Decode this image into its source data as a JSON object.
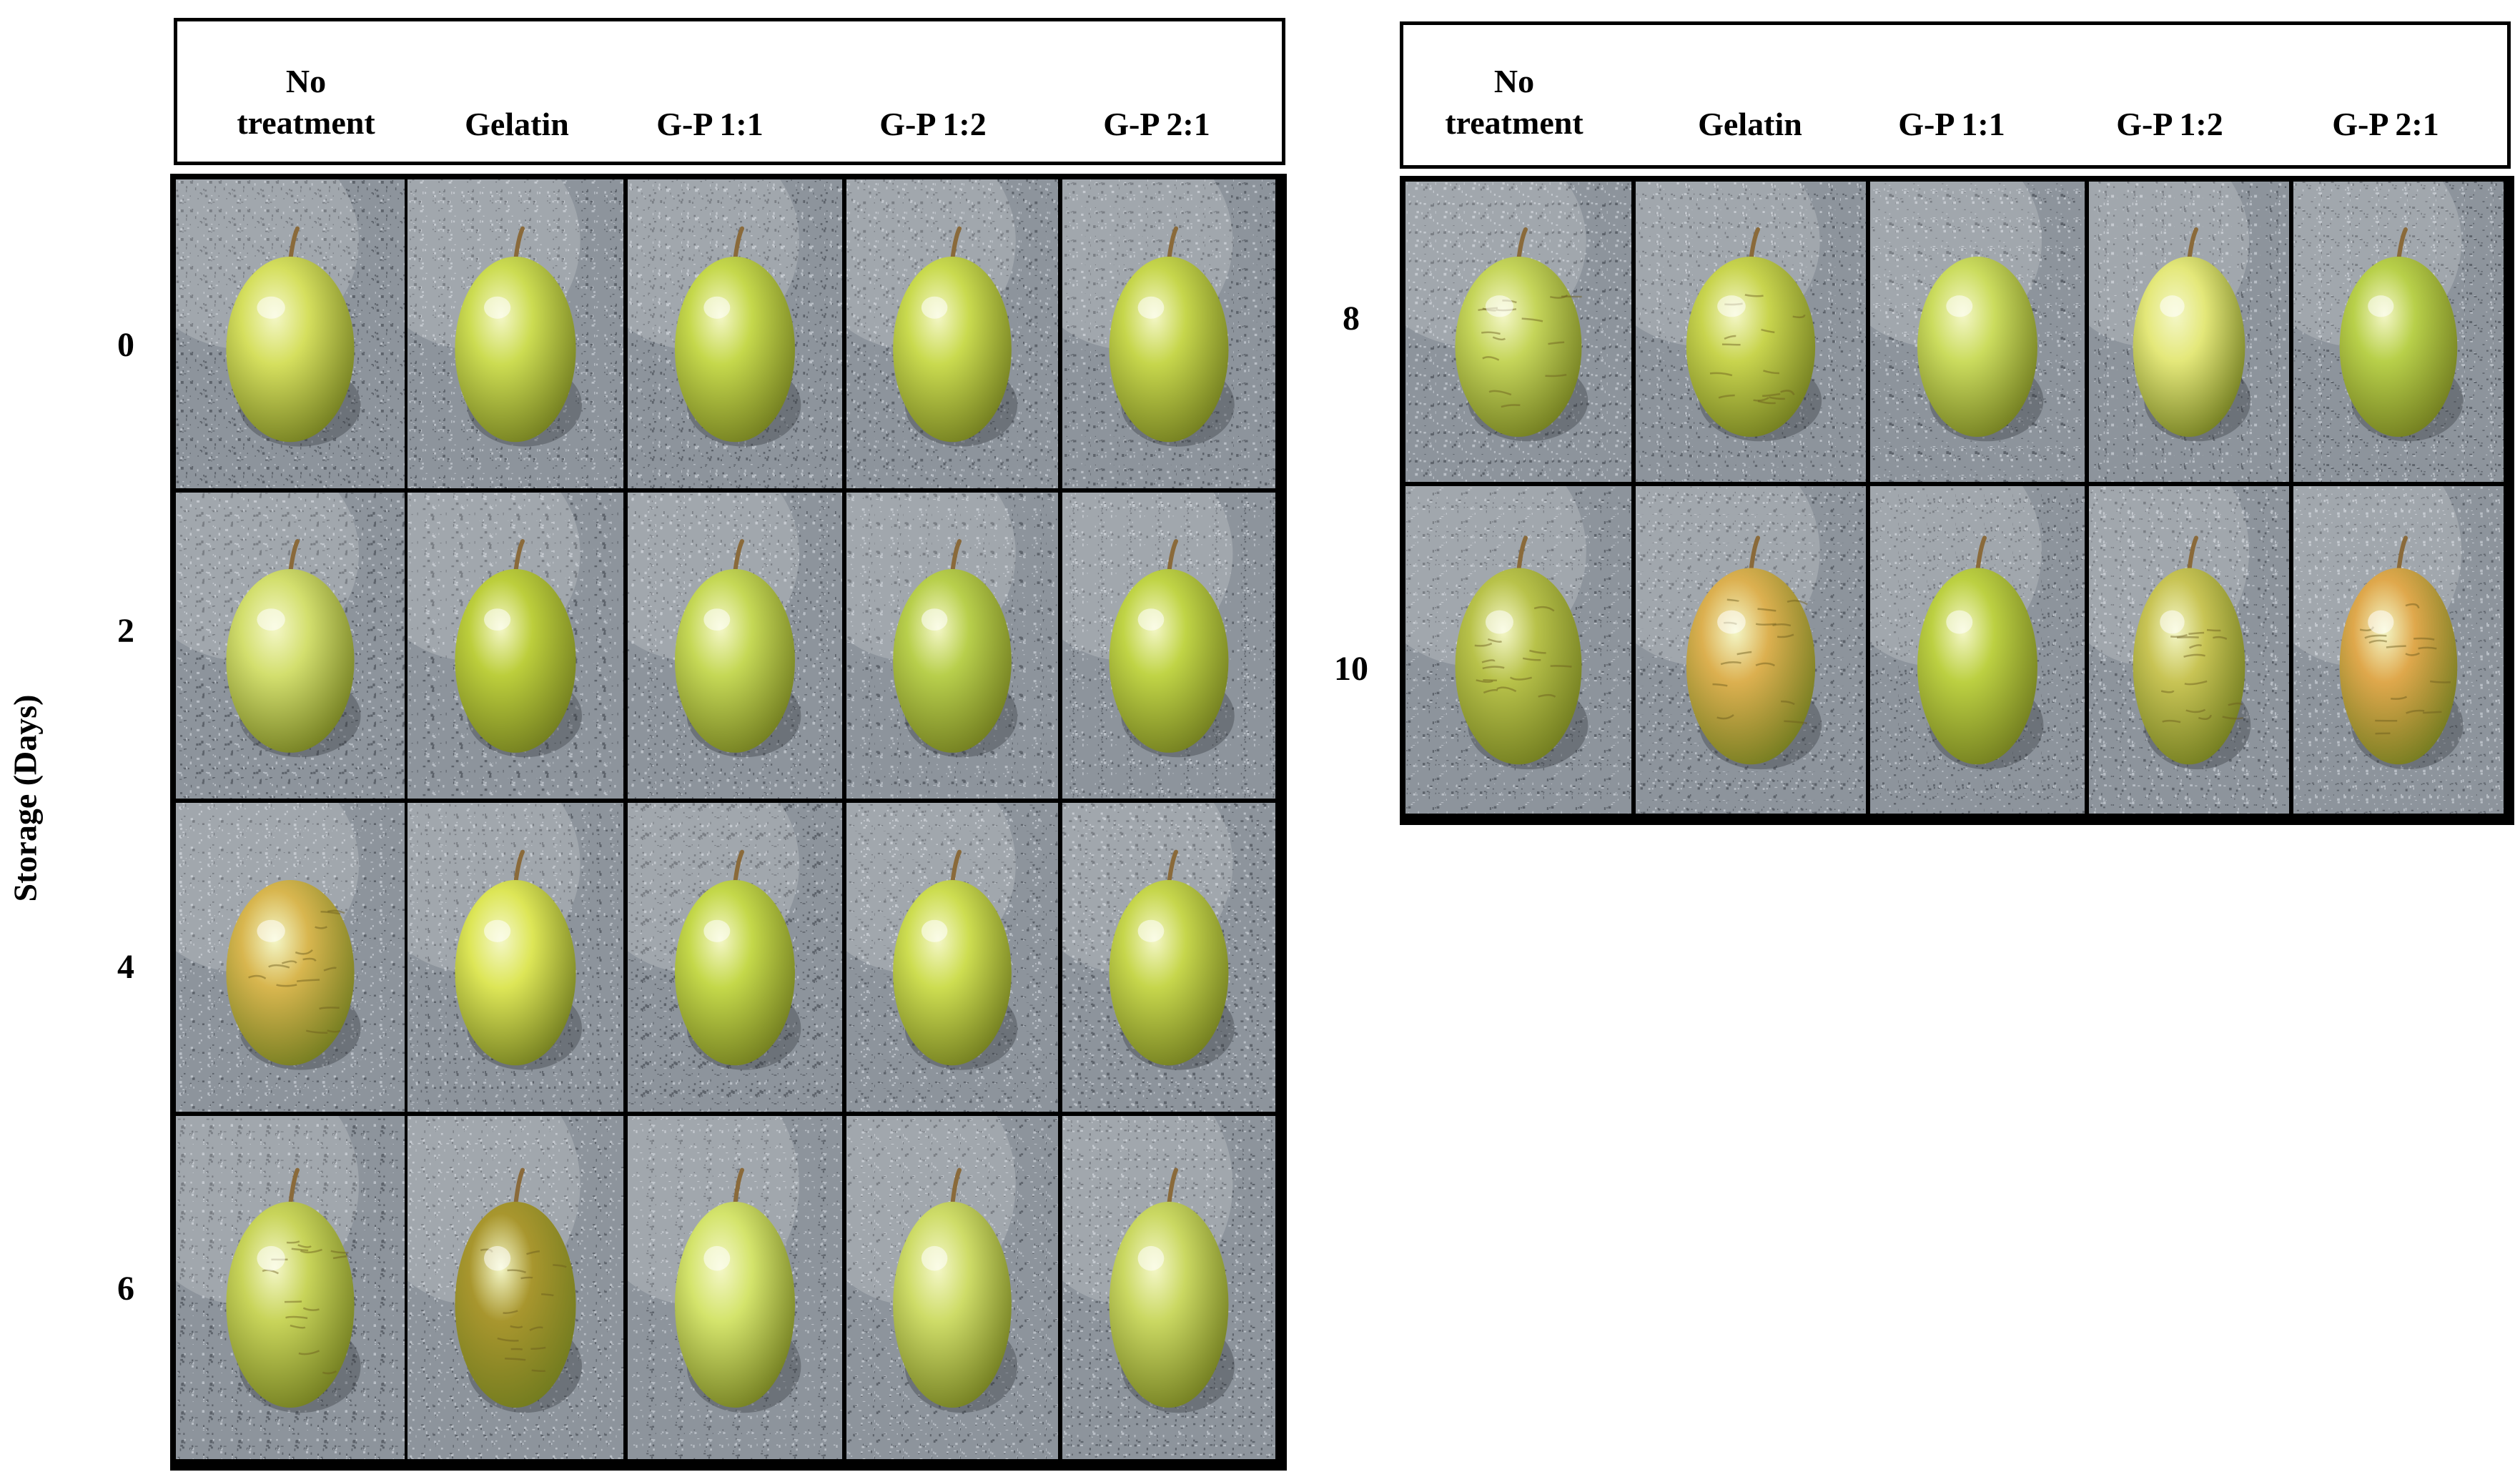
{
  "y_axis_label": "Storage (Days)",
  "columns": [
    "No\ntreatment",
    "Gelatin",
    "G-P 1:1",
    "G-P 1:2",
    "G-P 2:1"
  ],
  "panel_left": {
    "rows": [
      {
        "day": "0",
        "grapes": [
          {
            "skin": "#d5df5e",
            "wrinkled": false,
            "stem": true
          },
          {
            "skin": "#ccdc52",
            "wrinkled": false,
            "stem": true
          },
          {
            "skin": "#c5d84c",
            "wrinkled": false,
            "stem": true
          },
          {
            "skin": "#c9da4f",
            "wrinkled": false,
            "stem": true
          },
          {
            "skin": "#c6d64c",
            "wrinkled": false,
            "stem": true
          }
        ]
      },
      {
        "day": "2",
        "grapes": [
          {
            "skin": "#d3df6e",
            "wrinkled": false,
            "stem": true
          },
          {
            "skin": "#bcce3c",
            "wrinkled": false,
            "stem": true
          },
          {
            "skin": "#c5d856",
            "wrinkled": false,
            "stem": true
          },
          {
            "skin": "#b8cf4c",
            "wrinkled": false,
            "stem": true
          },
          {
            "skin": "#c0d446",
            "wrinkled": false,
            "stem": true
          }
        ]
      },
      {
        "day": "4",
        "grapes": [
          {
            "skin": "#d8b64f",
            "wrinkled": true,
            "stem": false
          },
          {
            "skin": "#dde657",
            "wrinkled": false,
            "stem": true
          },
          {
            "skin": "#c4d84a",
            "wrinkled": false,
            "stem": true
          },
          {
            "skin": "#cddd51",
            "wrinkled": false,
            "stem": true
          },
          {
            "skin": "#c6d64c",
            "wrinkled": false,
            "stem": true
          }
        ]
      },
      {
        "day": "6",
        "grapes": [
          {
            "skin": "#c8d45a",
            "wrinkled": true,
            "stem": true
          },
          {
            "skin": "#a8962e",
            "wrinkled": true,
            "stem": true
          },
          {
            "skin": "#d4e46c",
            "wrinkled": false,
            "stem": true
          },
          {
            "skin": "#cedc68",
            "wrinkled": false,
            "stem": true
          },
          {
            "skin": "#cad862",
            "wrinkled": false,
            "stem": true
          }
        ]
      }
    ]
  },
  "panel_right": {
    "rows": [
      {
        "day": "8",
        "grapes": [
          {
            "skin": "#c5d55a",
            "wrinkled": true,
            "stem": true
          },
          {
            "skin": "#c8d44e",
            "wrinkled": true,
            "stem": true
          },
          {
            "skin": "#cbdc5e",
            "wrinkled": false,
            "stem": false
          },
          {
            "skin": "#e4e87a",
            "wrinkled": false,
            "stem": true
          },
          {
            "skin": "#b8d04a",
            "wrinkled": false,
            "stem": true
          }
        ]
      },
      {
        "day": "10",
        "grapes": [
          {
            "skin": "#b8c24a",
            "wrinkled": true,
            "stem": true
          },
          {
            "skin": "#dcb050",
            "wrinkled": true,
            "stem": true
          },
          {
            "skin": "#bcd042",
            "wrinkled": false,
            "stem": true
          },
          {
            "skin": "#c8c455",
            "wrinkled": true,
            "stem": true
          },
          {
            "skin": "#dfa84c",
            "wrinkled": true,
            "stem": true
          }
        ]
      }
    ]
  },
  "colors": {
    "border": "#000000",
    "granite_base": "#8d949c",
    "granite_light": "#b9bfc6",
    "granite_dark": "#5d636b",
    "stem": "#8a6a3a"
  }
}
